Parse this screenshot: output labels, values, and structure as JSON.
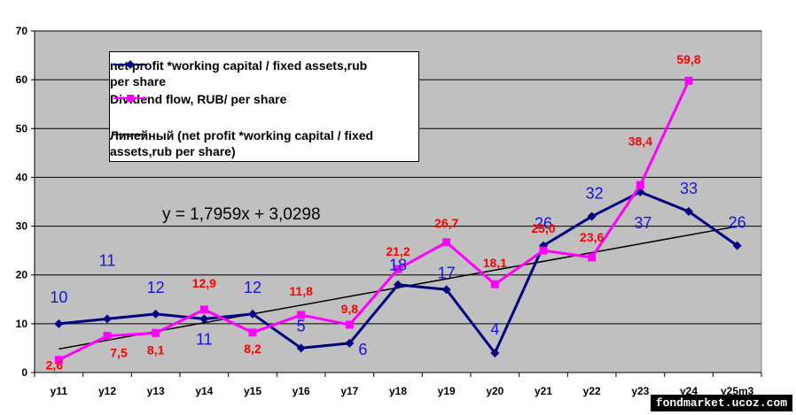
{
  "chart_data": {
    "type": "line",
    "categories": [
      "y11",
      "y12",
      "y13",
      "y14",
      "y15",
      "y16",
      "y17",
      "y18",
      "y19",
      "y20",
      "y21",
      "y22",
      "y23",
      "y24",
      "y25m3"
    ],
    "ylim": [
      0,
      70
    ],
    "yticks": [
      0,
      10,
      20,
      30,
      40,
      50,
      60,
      70
    ],
    "grid": true,
    "legend_position": "top-left",
    "series": [
      {
        "name": "net profit *working capital / fixed assets,rub per share",
        "color": "#000080",
        "marker": "diamond",
        "values": [
          10,
          11,
          12,
          11,
          12,
          5,
          6,
          18,
          17,
          4,
          26,
          32,
          37,
          33,
          26
        ],
        "labels": [
          "10",
          "11",
          "12",
          "11",
          "12",
          "5",
          "6",
          "18",
          "17",
          "4",
          "26",
          "32",
          "37",
          "33",
          "26"
        ],
        "label_color": "#1414dc"
      },
      {
        "name": "Dividend flow, RUB/ per share",
        "color": "#ff00ff",
        "marker": "square",
        "values": [
          2.6,
          7.5,
          8.1,
          12.9,
          8.2,
          11.8,
          9.8,
          21.2,
          26.7,
          18.1,
          25.0,
          23.6,
          38.4,
          59.8,
          null
        ],
        "labels": [
          "2,6",
          "7,5",
          "8,1",
          "12,9",
          "8,2",
          "11,8",
          "9,8",
          "21,2",
          "26,7",
          "18,1",
          "25,0",
          "23,6",
          "38,4",
          "59,8",
          ""
        ],
        "label_color": "#ff0000"
      }
    ],
    "trendline": {
      "name": "Линейный (net profit *working capital / fixed assets,rub per share)",
      "color": "#000000",
      "slope": 1.7959,
      "intercept": 3.0298,
      "equation": "y = 1,7959x + 3,0298"
    },
    "colors": {
      "plot_area": "#c0c0c0",
      "page": "#ffffff"
    }
  },
  "legend": {
    "entries": [
      "net profit *working capital / fixed assets,rub per share",
      "Dividend flow, RUB/ per share",
      "Линейный (net profit *working capital / fixed assets,rub per share)"
    ]
  },
  "equation_text": "y = 1,7959x + 3,0298",
  "watermark": "fondmarket.ucoz.com"
}
